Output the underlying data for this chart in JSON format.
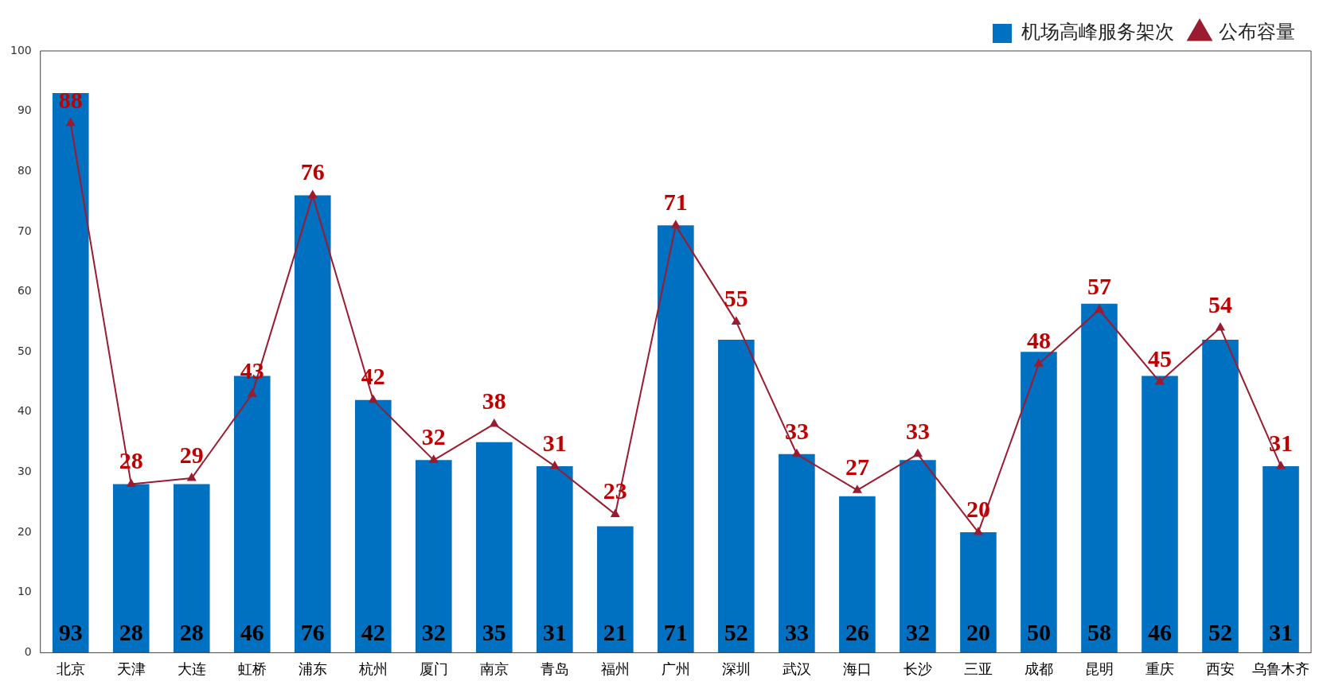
{
  "chart_data": {
    "type": "bar",
    "categories": [
      "北京",
      "天津",
      "大连",
      "虹桥",
      "浦东",
      "杭州",
      "厦门",
      "南京",
      "青岛",
      "福州",
      "广州",
      "深圳",
      "武汉",
      "海口",
      "长沙",
      "三亚",
      "成都",
      "昆明",
      "重庆",
      "西安",
      "乌鲁木齐"
    ],
    "series": [
      {
        "name": "机场高峰服务架次",
        "color": "#0070c0",
        "values": [
          93,
          28,
          28,
          46,
          76,
          42,
          32,
          35,
          31,
          21,
          71,
          52,
          33,
          26,
          32,
          20,
          50,
          58,
          46,
          52,
          31
        ]
      },
      {
        "name": "公布容量",
        "type": "line",
        "color": "#9b1b30",
        "marker": "triangle",
        "values": [
          88,
          28,
          29,
          43,
          76,
          42,
          32,
          38,
          31,
          23,
          71,
          55,
          33,
          27,
          33,
          20,
          48,
          57,
          45,
          54,
          31
        ]
      }
    ],
    "ylim": [
      0,
      100
    ],
    "yticks": [
      0,
      10,
      20,
      30,
      40,
      50,
      60,
      70,
      80,
      90,
      100
    ],
    "grid": false,
    "legend": "top right",
    "data_labels": true
  }
}
